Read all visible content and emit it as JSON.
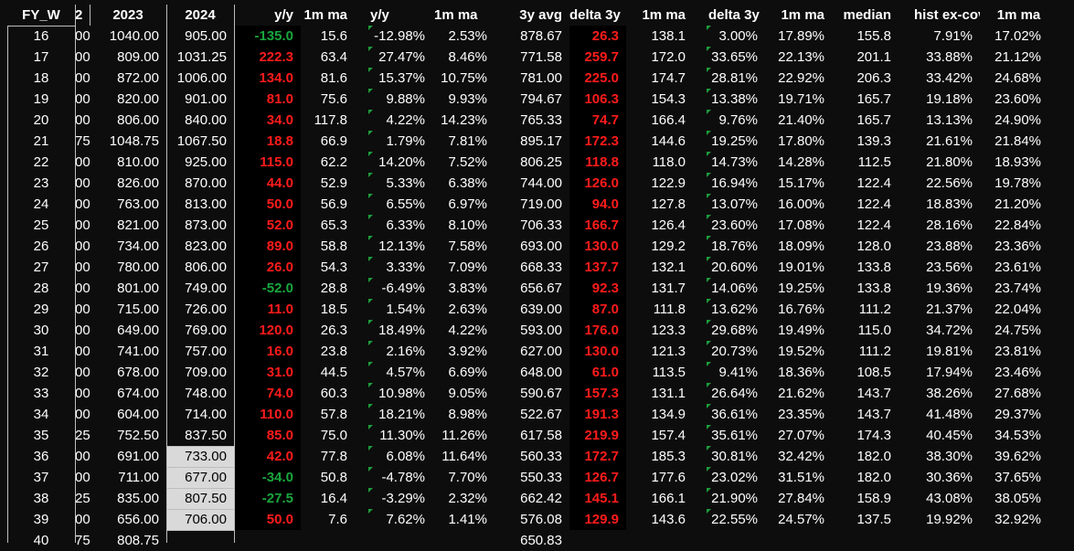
{
  "colors": {
    "positive": "#ff1b1b",
    "negative": "#19a63d",
    "note_marker": "#1e9b3c",
    "selected_fill": "#d9d9d9"
  },
  "headers": [
    "FY_W",
    "2",
    "2023",
    "2024",
    "y/y",
    "1m ma",
    "y/y",
    "1m ma",
    "3y avg",
    "delta 3y",
    "1m ma",
    "delta 3y",
    "1m ma",
    "median",
    "hist ex-covid",
    "1m ma"
  ],
  "rows": [
    [
      "16",
      "00",
      "1040.00",
      "905.00",
      "-135.0",
      "15.6",
      "-12.98%",
      "2.53%",
      "878.67",
      "26.3",
      "138.1",
      "3.00%",
      "17.89%",
      "155.8",
      "7.91%",
      "17.02%"
    ],
    [
      "17",
      "00",
      "809.00",
      "1031.25",
      "222.3",
      "63.4",
      "27.47%",
      "8.46%",
      "771.58",
      "259.7",
      "172.0",
      "33.65%",
      "22.13%",
      "201.1",
      "33.88%",
      "21.12%"
    ],
    [
      "18",
      "00",
      "872.00",
      "1006.00",
      "134.0",
      "81.6",
      "15.37%",
      "10.75%",
      "781.00",
      "225.0",
      "174.7",
      "28.81%",
      "22.92%",
      "206.3",
      "33.42%",
      "24.68%"
    ],
    [
      "19",
      "00",
      "820.00",
      "901.00",
      "81.0",
      "75.6",
      "9.88%",
      "9.93%",
      "794.67",
      "106.3",
      "154.3",
      "13.38%",
      "19.71%",
      "165.7",
      "19.18%",
      "23.60%"
    ],
    [
      "20",
      "00",
      "806.00",
      "840.00",
      "34.0",
      "117.8",
      "4.22%",
      "14.23%",
      "765.33",
      "74.7",
      "166.4",
      "9.76%",
      "21.40%",
      "165.7",
      "13.13%",
      "24.90%"
    ],
    [
      "21",
      "75",
      "1048.75",
      "1067.50",
      "18.8",
      "66.9",
      "1.79%",
      "7.81%",
      "895.17",
      "172.3",
      "144.6",
      "19.25%",
      "17.80%",
      "139.3",
      "21.61%",
      "21.84%"
    ],
    [
      "22",
      "00",
      "810.00",
      "925.00",
      "115.0",
      "62.2",
      "14.20%",
      "7.52%",
      "806.25",
      "118.8",
      "118.0",
      "14.73%",
      "14.28%",
      "112.5",
      "21.80%",
      "18.93%"
    ],
    [
      "23",
      "00",
      "826.00",
      "870.00",
      "44.0",
      "52.9",
      "5.33%",
      "6.38%",
      "744.00",
      "126.0",
      "122.9",
      "16.94%",
      "15.17%",
      "122.4",
      "22.56%",
      "19.78%"
    ],
    [
      "24",
      "00",
      "763.00",
      "813.00",
      "50.0",
      "56.9",
      "6.55%",
      "6.97%",
      "719.00",
      "94.0",
      "127.8",
      "13.07%",
      "16.00%",
      "122.4",
      "18.83%",
      "21.20%"
    ],
    [
      "25",
      "00",
      "821.00",
      "873.00",
      "52.0",
      "65.3",
      "6.33%",
      "8.10%",
      "706.33",
      "166.7",
      "126.4",
      "23.60%",
      "17.08%",
      "122.4",
      "28.16%",
      "22.84%"
    ],
    [
      "26",
      "00",
      "734.00",
      "823.00",
      "89.0",
      "58.8",
      "12.13%",
      "7.58%",
      "693.00",
      "130.0",
      "129.2",
      "18.76%",
      "18.09%",
      "128.0",
      "23.88%",
      "23.36%"
    ],
    [
      "27",
      "00",
      "780.00",
      "806.00",
      "26.0",
      "54.3",
      "3.33%",
      "7.09%",
      "668.33",
      "137.7",
      "132.1",
      "20.60%",
      "19.01%",
      "133.8",
      "23.56%",
      "23.61%"
    ],
    [
      "28",
      "00",
      "801.00",
      "749.00",
      "-52.0",
      "28.8",
      "-6.49%",
      "3.83%",
      "656.67",
      "92.3",
      "131.7",
      "14.06%",
      "19.25%",
      "133.8",
      "19.36%",
      "23.74%"
    ],
    [
      "29",
      "00",
      "715.00",
      "726.00",
      "11.0",
      "18.5",
      "1.54%",
      "2.63%",
      "639.00",
      "87.0",
      "111.8",
      "13.62%",
      "16.76%",
      "111.2",
      "21.37%",
      "22.04%"
    ],
    [
      "30",
      "00",
      "649.00",
      "769.00",
      "120.0",
      "26.3",
      "18.49%",
      "4.22%",
      "593.00",
      "176.0",
      "123.3",
      "29.68%",
      "19.49%",
      "115.0",
      "34.72%",
      "24.75%"
    ],
    [
      "31",
      "00",
      "741.00",
      "757.00",
      "16.0",
      "23.8",
      "2.16%",
      "3.92%",
      "627.00",
      "130.0",
      "121.3",
      "20.73%",
      "19.52%",
      "111.2",
      "19.81%",
      "23.81%"
    ],
    [
      "32",
      "00",
      "678.00",
      "709.00",
      "31.0",
      "44.5",
      "4.57%",
      "6.69%",
      "648.00",
      "61.0",
      "113.5",
      "9.41%",
      "18.36%",
      "108.5",
      "17.94%",
      "23.46%"
    ],
    [
      "33",
      "00",
      "674.00",
      "748.00",
      "74.0",
      "60.3",
      "10.98%",
      "9.05%",
      "590.67",
      "157.3",
      "131.1",
      "26.64%",
      "21.62%",
      "143.7",
      "38.26%",
      "27.68%"
    ],
    [
      "34",
      "00",
      "604.00",
      "714.00",
      "110.0",
      "57.8",
      "18.21%",
      "8.98%",
      "522.67",
      "191.3",
      "134.9",
      "36.61%",
      "23.35%",
      "143.7",
      "41.48%",
      "29.37%"
    ],
    [
      "35",
      "25",
      "752.50",
      "837.50",
      "85.0",
      "75.0",
      "11.30%",
      "11.26%",
      "617.58",
      "219.9",
      "157.4",
      "35.61%",
      "27.07%",
      "174.3",
      "40.45%",
      "34.53%"
    ],
    [
      "36",
      "00",
      "691.00",
      "733.00",
      "42.0",
      "77.8",
      "6.08%",
      "11.64%",
      "560.33",
      "172.7",
      "185.3",
      "30.81%",
      "32.42%",
      "182.0",
      "38.30%",
      "39.62%"
    ],
    [
      "37",
      "00",
      "711.00",
      "677.00",
      "-34.0",
      "50.8",
      "-4.78%",
      "7.70%",
      "550.33",
      "126.7",
      "177.6",
      "23.02%",
      "31.51%",
      "182.0",
      "30.36%",
      "37.65%"
    ],
    [
      "38",
      "25",
      "835.00",
      "807.50",
      "-27.5",
      "16.4",
      "-3.29%",
      "2.32%",
      "662.42",
      "145.1",
      "166.1",
      "21.90%",
      "27.84%",
      "158.9",
      "43.08%",
      "38.05%"
    ],
    [
      "39",
      "00",
      "656.00",
      "706.00",
      "50.0",
      "7.6",
      "7.62%",
      "1.41%",
      "576.08",
      "129.9",
      "143.6",
      "22.55%",
      "24.57%",
      "137.5",
      "19.92%",
      "32.92%"
    ],
    [
      "40",
      "75",
      "808.75",
      "",
      "",
      "",
      "",
      "",
      "650.83",
      "",
      "",
      "",
      "",
      "",
      "",
      ""
    ]
  ]
}
